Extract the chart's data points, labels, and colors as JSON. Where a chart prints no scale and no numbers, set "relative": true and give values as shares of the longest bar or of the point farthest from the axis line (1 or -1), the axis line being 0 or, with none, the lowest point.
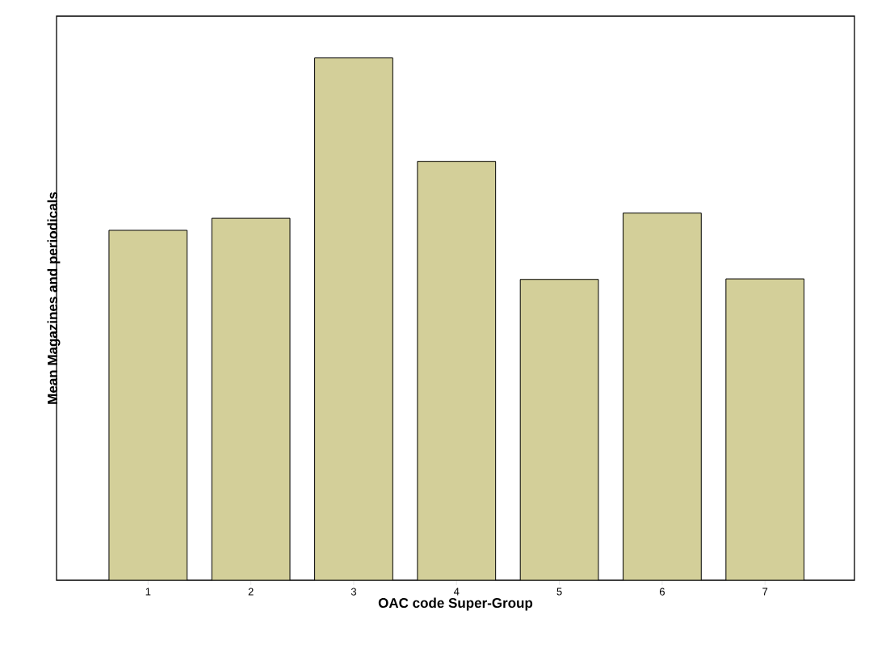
{
  "chart_data": {
    "type": "bar",
    "relative": true,
    "xlabel": "OAC code Super-Group",
    "ylabel": "Mean Magazines and periodicals",
    "categories": [
      "1",
      "2",
      "3",
      "4",
      "5",
      "6",
      "7"
    ],
    "values": [
      0.67,
      0.693,
      1,
      0.802,
      0.576,
      0.703,
      0.577
    ],
    "color": "#d3cf99"
  }
}
